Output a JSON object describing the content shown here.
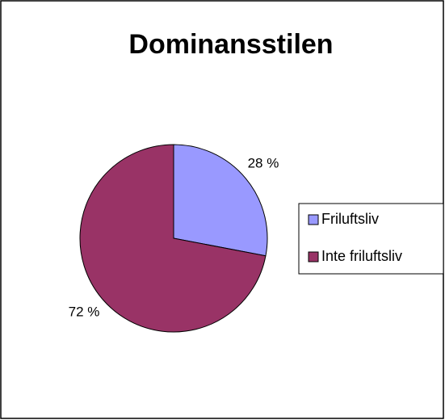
{
  "chart_data": {
    "type": "pie",
    "title": "Dominansstilen",
    "categories": [
      "Friluftsliv",
      "Inte friluftsliv"
    ],
    "values": [
      28,
      72
    ],
    "value_labels": [
      "28 %",
      "72 %"
    ],
    "colors": [
      "#9999ff",
      "#993366"
    ],
    "legend": "right"
  }
}
